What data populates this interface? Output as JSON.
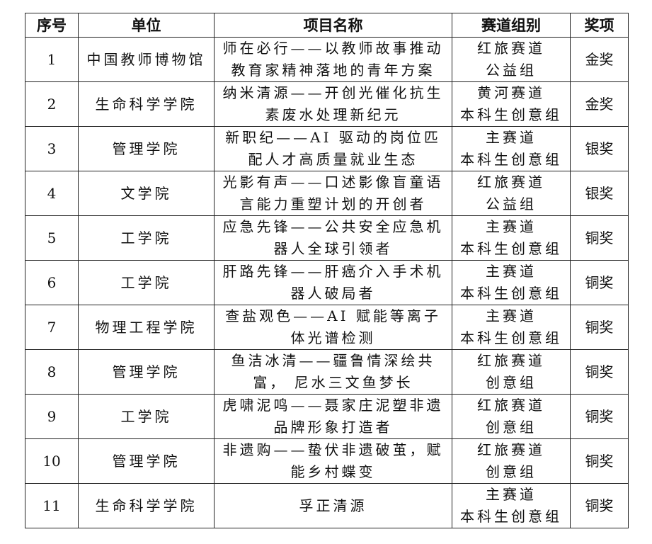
{
  "headers": [
    "序号",
    "单位",
    "项目名称",
    "赛道组别",
    "奖项"
  ],
  "rows": [
    {
      "no": "1",
      "unit": "中国教师博物馆",
      "name": [
        "师在必行——以教师故事推动",
        "教育家精神落地的青年方案"
      ],
      "track": [
        "红旅赛道",
        "公益组"
      ],
      "award": "金奖"
    },
    {
      "no": "2",
      "unit": "生命科学学院",
      "name": [
        "纳米清源——开创光催化抗生",
        "素废水处理新纪元"
      ],
      "track": [
        "黄河赛道",
        "本科生创意组"
      ],
      "award": "金奖"
    },
    {
      "no": "3",
      "unit": "管理学院",
      "name": [
        "新职纪——AI 驱动的岗位匹",
        "配人才高质量就业生态"
      ],
      "track": [
        "主赛道",
        "本科生创意组"
      ],
      "award": "银奖"
    },
    {
      "no": "4",
      "unit": "文学院",
      "name": [
        "光影有声——口述影像盲童语",
        "言能力重塑计划的开创者"
      ],
      "track": [
        "红旅赛道",
        "公益组"
      ],
      "award": "银奖"
    },
    {
      "no": "5",
      "unit": "工学院",
      "name": [
        "应急先锋——公共安全应急机",
        "器人全球引领者"
      ],
      "track": [
        "主赛道",
        "本科生创意组"
      ],
      "award": "铜奖"
    },
    {
      "no": "6",
      "unit": "工学院",
      "name": [
        "肝路先锋——肝癌介入手术机",
        "器人破局者"
      ],
      "track": [
        "主赛道",
        "本科生创意组"
      ],
      "award": "铜奖"
    },
    {
      "no": "7",
      "unit": "物理工程学院",
      "name": [
        "查盐观色——AI 赋能等离子",
        "体光谱检测"
      ],
      "track": [
        "主赛道",
        "本科生创意组"
      ],
      "award": "铜奖"
    },
    {
      "no": "8",
      "unit": "管理学院",
      "name": [
        "鱼洁冰清——疆鲁情深绘共",
        "富， 尼水三文鱼梦长"
      ],
      "track": [
        "红旅赛道",
        "创意组"
      ],
      "award": "铜奖"
    },
    {
      "no": "9",
      "unit": "工学院",
      "name": [
        "虎啸泥鸣——聂家庄泥塑非遗",
        "品牌形象打造者"
      ],
      "track": [
        "红旅赛道",
        "创意组"
      ],
      "award": "铜奖"
    },
    {
      "no": "10",
      "unit": "管理学院",
      "name": [
        "非遗购——蛰伏非遗破茧，赋",
        "能乡村蝶变"
      ],
      "track": [
        "红旅赛道",
        "创意组"
      ],
      "award": "铜奖"
    },
    {
      "no": "11",
      "unit": "生命科学学院",
      "name": [
        "孚正清源"
      ],
      "track": [
        "主赛道",
        "本科生创意组"
      ],
      "award": "铜奖"
    }
  ]
}
